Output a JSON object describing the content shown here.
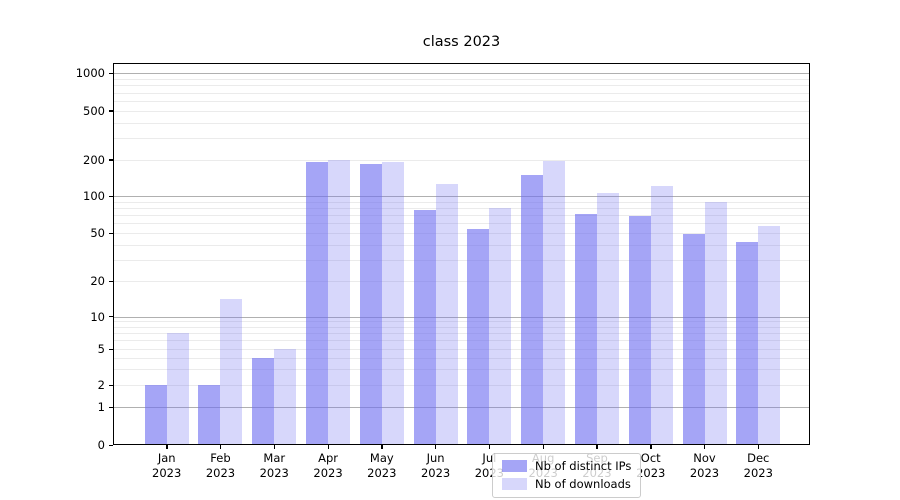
{
  "title": "class 2023",
  "legend": {
    "items": [
      {
        "label": "Nb of distinct IPs",
        "series": "distinct_ips"
      },
      {
        "label": "Nb of downloads",
        "series": "downloads"
      }
    ],
    "position": "lower center"
  },
  "chart_data": {
    "type": "bar",
    "title": "class 2023",
    "categories": [
      "Jan 2023",
      "Feb 2023",
      "Mar 2023",
      "Apr 2023",
      "May 2023",
      "Jun 2023",
      "Jul 2023",
      "Aug 2023",
      "Sep 2023",
      "Oct 2023",
      "Nov 2023",
      "Dec 2023"
    ],
    "series": [
      {
        "name": "Nb of distinct IPs",
        "values": [
          2,
          2,
          4,
          190,
          185,
          77,
          54,
          150,
          71,
          69,
          49,
          42
        ]
      },
      {
        "name": "Nb of downloads",
        "values": [
          7,
          14,
          5,
          200,
          190,
          125,
          80,
          195,
          106,
          121,
          90,
          57
        ]
      }
    ],
    "xlabel": "",
    "ylabel": "",
    "yscale": "symlog",
    "yticks": [
      0,
      1,
      2,
      5,
      10,
      20,
      50,
      100,
      200,
      500,
      1000
    ],
    "ylim": [
      0,
      1200
    ],
    "grid": true,
    "legend_position": "lower center",
    "colors": {
      "distinct_ips": "rgba(110,110,240,0.62)",
      "downloads": "rgba(110,110,240,0.28)",
      "distinct_ips_apparent": "#a5a5f6",
      "downloads_apparent": "#d6d6fb"
    }
  }
}
